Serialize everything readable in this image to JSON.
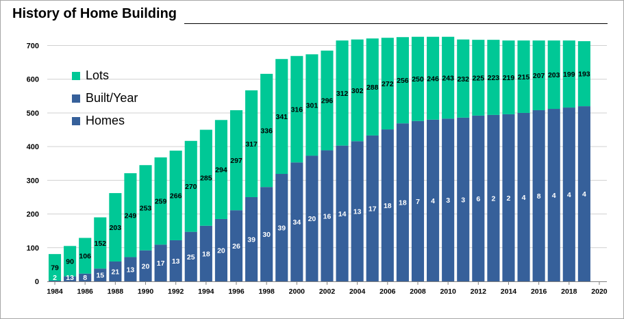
{
  "colors": {
    "lots": "#00c896",
    "homes": "#36609a",
    "grid": "#d0d0d0",
    "axis": "#7f7f7f"
  },
  "chart_data": {
    "type": "bar",
    "title": "History of Home Building",
    "stacked": true,
    "x": [
      1984,
      1985,
      1986,
      1987,
      1988,
      1989,
      1990,
      1991,
      1992,
      1993,
      1994,
      1995,
      1996,
      1997,
      1998,
      1999,
      2000,
      2001,
      2002,
      2003,
      2004,
      2005,
      2006,
      2007,
      2008,
      2009,
      2010,
      2011,
      2012,
      2013,
      2014,
      2015,
      2016,
      2017,
      2018,
      2019
    ],
    "x_ticks": [
      "1984",
      "1986",
      "1988",
      "1990",
      "1992",
      "1994",
      "1996",
      "1998",
      "2000",
      "2002",
      "2004",
      "2006",
      "2008",
      "2010",
      "2012",
      "2014",
      "2016",
      "2018",
      "2020"
    ],
    "x_tick_values": [
      1984,
      1986,
      1988,
      1990,
      1992,
      1994,
      1996,
      1998,
      2000,
      2002,
      2004,
      2006,
      2008,
      2010,
      2012,
      2014,
      2016,
      2018,
      2020
    ],
    "y_ticks": [
      "0",
      "100",
      "200",
      "300",
      "400",
      "500",
      "600",
      "700"
    ],
    "ylim": [
      0,
      760
    ],
    "grid": true,
    "legend": [
      "Lots",
      "Built/Year",
      "Homes"
    ],
    "legend_position": "top-left",
    "series": [
      {
        "name": "Homes",
        "values": [
          2,
          15,
          23,
          38,
          59,
          72,
          92,
          109,
          122,
          147,
          165,
          185,
          211,
          250,
          280,
          319,
          353,
          373,
          389,
          403,
          416,
          433,
          451,
          469,
          476,
          480,
          483,
          486,
          492,
          494,
          496,
          500,
          508,
          512,
          516,
          520
        ]
      },
      {
        "name": "Lots",
        "values": [
          79,
          90,
          106,
          152,
          203,
          249,
          253,
          259,
          266,
          270,
          285,
          294,
          297,
          317,
          336,
          341,
          316,
          301,
          296,
          312,
          302,
          288,
          272,
          256,
          250,
          246,
          243,
          232,
          225,
          223,
          219,
          215,
          207,
          203,
          199,
          193
        ]
      }
    ],
    "homes_labels": [
      "2",
      "13",
      "8",
      "15",
      "21",
      "13",
      "20",
      "17",
      "13",
      "25",
      "18",
      "20",
      "26",
      "39",
      "30",
      "39",
      "34",
      "20",
      "16",
      "14",
      "13",
      "17",
      "18",
      "18",
      "7",
      "4",
      "3",
      "3",
      "6",
      "2",
      "2",
      "4",
      "8",
      "4",
      "4",
      "4"
    ],
    "lots_labels": [
      "79",
      "90",
      "106",
      "152",
      "203",
      "249",
      "253",
      "259",
      "266",
      "270",
      "285",
      "294",
      "297",
      "317",
      "336",
      "341",
      "316",
      "301",
      "296",
      "312",
      "302",
      "288",
      "272",
      "256",
      "250",
      "246",
      "243",
      "232",
      "225",
      "223",
      "219",
      "215",
      "207",
      "203",
      "199",
      "193"
    ]
  },
  "legend": {
    "lots": "Lots",
    "built_year": "Built/Year",
    "homes": "Homes"
  }
}
